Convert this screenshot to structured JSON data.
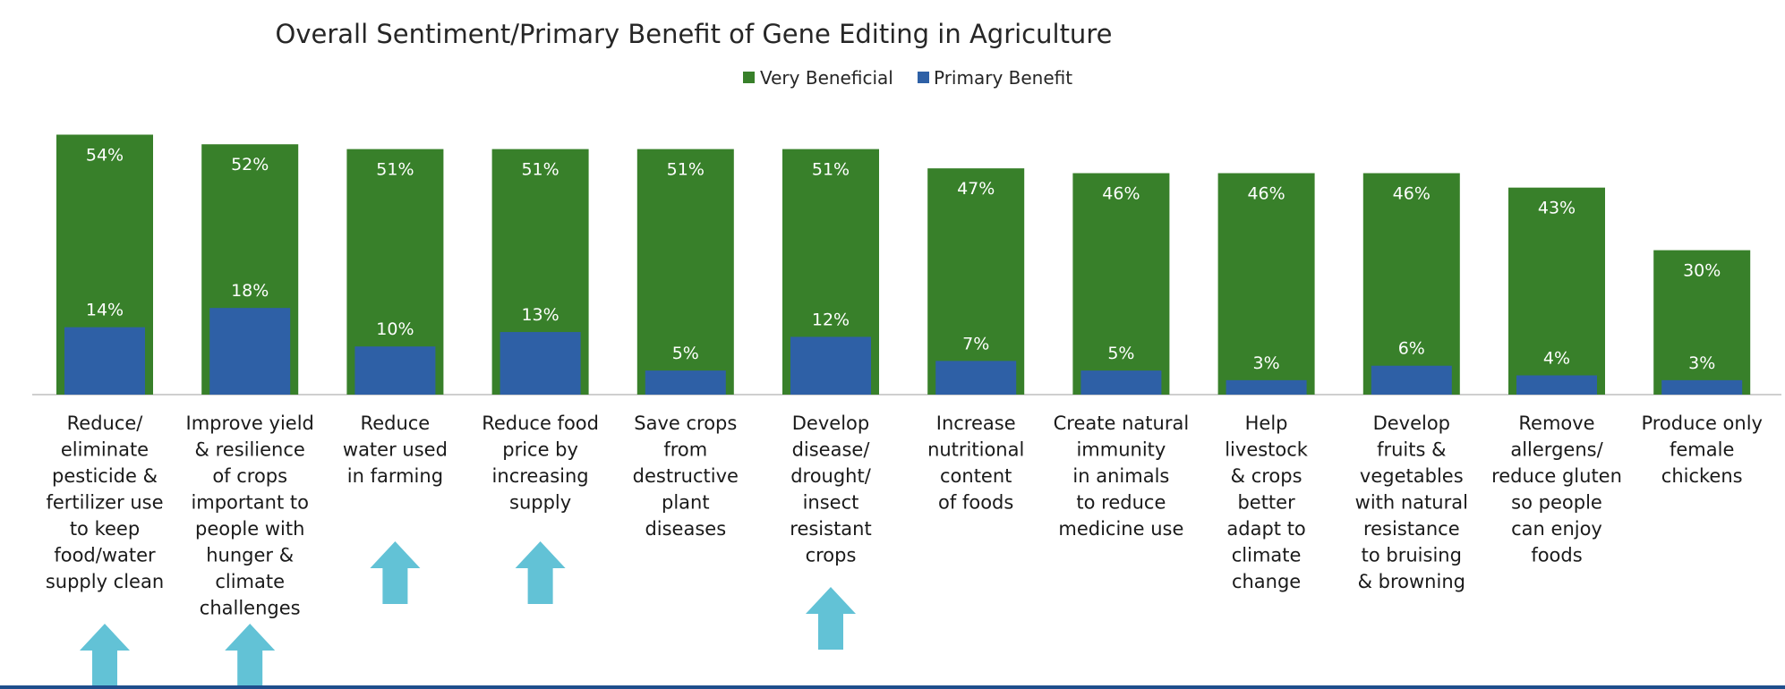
{
  "colors": {
    "very_beneficial": "#38802A",
    "primary_benefit": "#2E60A6",
    "arrow": "#62C2D6",
    "axis": "#BFBFBF",
    "bottom_rule": "#1F4E8C"
  },
  "chart_data": {
    "type": "bar",
    "title": "Overall Sentiment/Primary Benefit of Gene Editing in Agriculture",
    "xlabel": "",
    "ylabel": "",
    "ylim": [
      0,
      60
    ],
    "grid": false,
    "legend_position": "top-center",
    "categories": [
      [
        "Reduce/",
        "eliminate",
        "pesticide &",
        "fertilizer use",
        "to keep",
        "food/water",
        "supply clean"
      ],
      [
        "Improve yield",
        "& resilience",
        "of crops",
        "important to",
        "people with",
        "hunger &",
        "climate",
        "challenges"
      ],
      [
        "Reduce",
        "water used",
        "in farming"
      ],
      [
        "Reduce food",
        "price by",
        "increasing",
        "supply"
      ],
      [
        "Save crops",
        "from",
        "destructive",
        "plant",
        "diseases"
      ],
      [
        "Develop",
        "disease/",
        "drought/",
        "insect",
        "resistant",
        "crops"
      ],
      [
        "Increase",
        "nutritional",
        "content",
        "of foods"
      ],
      [
        "Create natural",
        "immunity",
        "in animals",
        "to reduce",
        "medicine use"
      ],
      [
        "Help",
        "livestock",
        "& crops",
        "better",
        "adapt to",
        "climate",
        "change"
      ],
      [
        "Develop",
        "fruits &",
        "vegetables",
        "with natural",
        "resistance",
        "to bruising",
        "& browning"
      ],
      [
        "Remove",
        "allergens/",
        "reduce gluten",
        "so people",
        "can enjoy",
        "foods"
      ],
      [
        "Produce only",
        "female",
        "chickens"
      ]
    ],
    "series": [
      {
        "name": "Very Beneficial",
        "values": [
          54,
          52,
          51,
          51,
          51,
          51,
          47,
          46,
          46,
          46,
          43,
          30
        ],
        "labels": [
          "54%",
          "52%",
          "51%",
          "51%",
          "51%",
          "51%",
          "47%",
          "46%",
          "46%",
          "46%",
          "43%",
          "30%"
        ]
      },
      {
        "name": "Primary Benefit",
        "values": [
          14,
          18,
          10,
          13,
          5,
          12,
          7,
          5,
          3,
          6,
          4,
          3
        ],
        "labels": [
          "14%",
          "18%",
          "10%",
          "13%",
          "5%",
          "12%",
          "7%",
          "5%",
          "3%",
          "6%",
          "4%",
          "3%"
        ]
      }
    ],
    "highlight_arrows": [
      {
        "category_index": 0,
        "level": 2
      },
      {
        "category_index": 1,
        "level": 2
      },
      {
        "category_index": 2,
        "level": 1
      },
      {
        "category_index": 3,
        "level": 1
      },
      {
        "category_index": 5,
        "level": 3
      }
    ]
  }
}
